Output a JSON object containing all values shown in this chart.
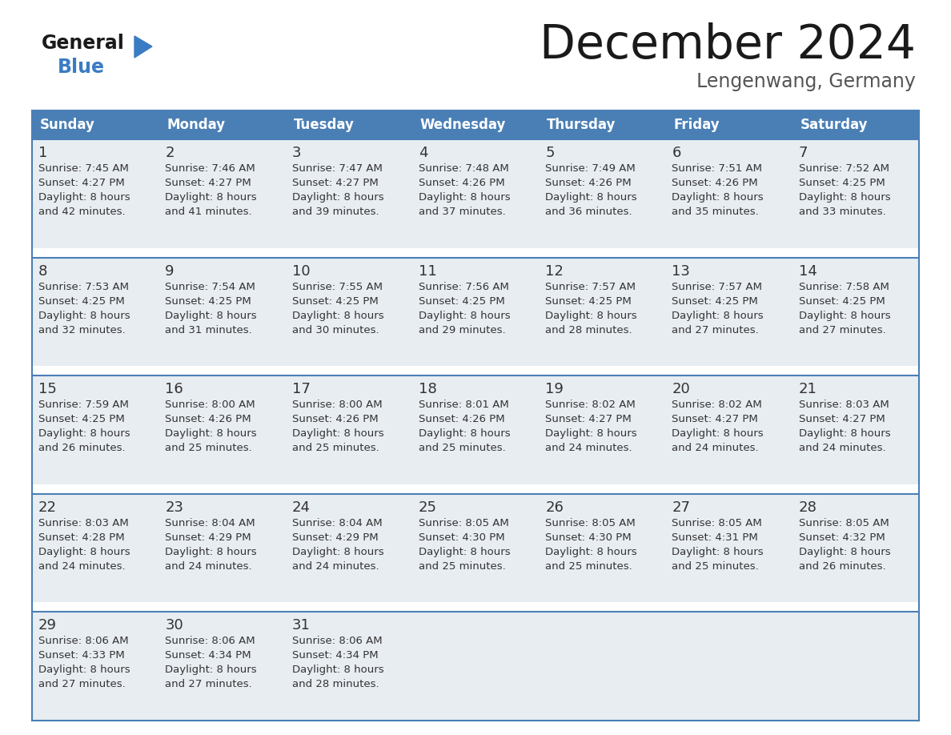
{
  "title": "December 2024",
  "subtitle": "Lengenwang, Germany",
  "header_color": "#4A7FB5",
  "header_text_color": "#FFFFFF",
  "day_names": [
    "Sunday",
    "Monday",
    "Tuesday",
    "Wednesday",
    "Thursday",
    "Friday",
    "Saturday"
  ],
  "weeks": [
    [
      {
        "day": 1,
        "sunrise": "7:45 AM",
        "sunset": "4:27 PM",
        "daylight": "8 hours and 42 minutes."
      },
      {
        "day": 2,
        "sunrise": "7:46 AM",
        "sunset": "4:27 PM",
        "daylight": "8 hours and 41 minutes."
      },
      {
        "day": 3,
        "sunrise": "7:47 AM",
        "sunset": "4:27 PM",
        "daylight": "8 hours and 39 minutes."
      },
      {
        "day": 4,
        "sunrise": "7:48 AM",
        "sunset": "4:26 PM",
        "daylight": "8 hours and 37 minutes."
      },
      {
        "day": 5,
        "sunrise": "7:49 AM",
        "sunset": "4:26 PM",
        "daylight": "8 hours and 36 minutes."
      },
      {
        "day": 6,
        "sunrise": "7:51 AM",
        "sunset": "4:26 PM",
        "daylight": "8 hours and 35 minutes."
      },
      {
        "day": 7,
        "sunrise": "7:52 AM",
        "sunset": "4:25 PM",
        "daylight": "8 hours and 33 minutes."
      }
    ],
    [
      {
        "day": 8,
        "sunrise": "7:53 AM",
        "sunset": "4:25 PM",
        "daylight": "8 hours and 32 minutes."
      },
      {
        "day": 9,
        "sunrise": "7:54 AM",
        "sunset": "4:25 PM",
        "daylight": "8 hours and 31 minutes."
      },
      {
        "day": 10,
        "sunrise": "7:55 AM",
        "sunset": "4:25 PM",
        "daylight": "8 hours and 30 minutes."
      },
      {
        "day": 11,
        "sunrise": "7:56 AM",
        "sunset": "4:25 PM",
        "daylight": "8 hours and 29 minutes."
      },
      {
        "day": 12,
        "sunrise": "7:57 AM",
        "sunset": "4:25 PM",
        "daylight": "8 hours and 28 minutes."
      },
      {
        "day": 13,
        "sunrise": "7:57 AM",
        "sunset": "4:25 PM",
        "daylight": "8 hours and 27 minutes."
      },
      {
        "day": 14,
        "sunrise": "7:58 AM",
        "sunset": "4:25 PM",
        "daylight": "8 hours and 27 minutes."
      }
    ],
    [
      {
        "day": 15,
        "sunrise": "7:59 AM",
        "sunset": "4:25 PM",
        "daylight": "8 hours and 26 minutes."
      },
      {
        "day": 16,
        "sunrise": "8:00 AM",
        "sunset": "4:26 PM",
        "daylight": "8 hours and 25 minutes."
      },
      {
        "day": 17,
        "sunrise": "8:00 AM",
        "sunset": "4:26 PM",
        "daylight": "8 hours and 25 minutes."
      },
      {
        "day": 18,
        "sunrise": "8:01 AM",
        "sunset": "4:26 PM",
        "daylight": "8 hours and 25 minutes."
      },
      {
        "day": 19,
        "sunrise": "8:02 AM",
        "sunset": "4:27 PM",
        "daylight": "8 hours and 24 minutes."
      },
      {
        "day": 20,
        "sunrise": "8:02 AM",
        "sunset": "4:27 PM",
        "daylight": "8 hours and 24 minutes."
      },
      {
        "day": 21,
        "sunrise": "8:03 AM",
        "sunset": "4:27 PM",
        "daylight": "8 hours and 24 minutes."
      }
    ],
    [
      {
        "day": 22,
        "sunrise": "8:03 AM",
        "sunset": "4:28 PM",
        "daylight": "8 hours and 24 minutes."
      },
      {
        "day": 23,
        "sunrise": "8:04 AM",
        "sunset": "4:29 PM",
        "daylight": "8 hours and 24 minutes."
      },
      {
        "day": 24,
        "sunrise": "8:04 AM",
        "sunset": "4:29 PM",
        "daylight": "8 hours and 24 minutes."
      },
      {
        "day": 25,
        "sunrise": "8:05 AM",
        "sunset": "4:30 PM",
        "daylight": "8 hours and 25 minutes."
      },
      {
        "day": 26,
        "sunrise": "8:05 AM",
        "sunset": "4:30 PM",
        "daylight": "8 hours and 25 minutes."
      },
      {
        "day": 27,
        "sunrise": "8:05 AM",
        "sunset": "4:31 PM",
        "daylight": "8 hours and 25 minutes."
      },
      {
        "day": 28,
        "sunrise": "8:05 AM",
        "sunset": "4:32 PM",
        "daylight": "8 hours and 26 minutes."
      }
    ],
    [
      {
        "day": 29,
        "sunrise": "8:06 AM",
        "sunset": "4:33 PM",
        "daylight": "8 hours and 27 minutes."
      },
      {
        "day": 30,
        "sunrise": "8:06 AM",
        "sunset": "4:34 PM",
        "daylight": "8 hours and 27 minutes."
      },
      {
        "day": 31,
        "sunrise": "8:06 AM",
        "sunset": "4:34 PM",
        "daylight": "8 hours and 28 minutes."
      },
      null,
      null,
      null,
      null
    ]
  ],
  "bg_color": "#FFFFFF",
  "cell_bg_color": "#E8EDF2",
  "white_gap_color": "#FFFFFF",
  "grid_line_color": "#4A7FB5",
  "day_number_color": "#333333",
  "cell_text_color": "#333333"
}
